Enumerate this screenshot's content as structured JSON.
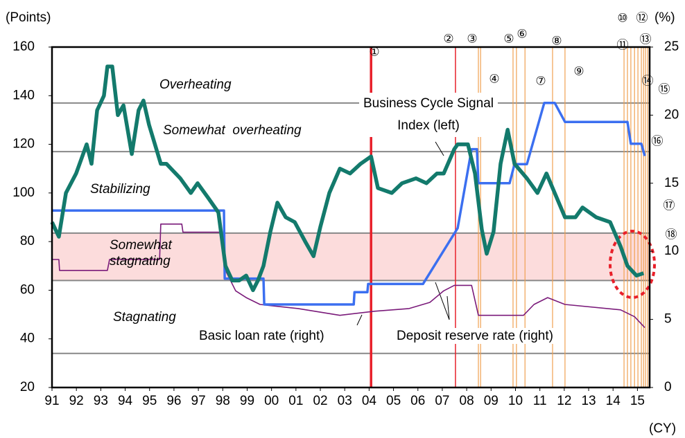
{
  "chart_data": {
    "type": "line",
    "y_label": "(Points)",
    "y2_label": "(%)",
    "x_label": "(CY)",
    "xlim": [
      1991,
      2015.5
    ],
    "xticks": [
      {
        "value": 1991,
        "label": "91"
      },
      {
        "value": 1992,
        "label": "92"
      },
      {
        "value": 1993,
        "label": "93"
      },
      {
        "value": 1994,
        "label": "94"
      },
      {
        "value": 1995,
        "label": "95"
      },
      {
        "value": 1996,
        "label": "96"
      },
      {
        "value": 1997,
        "label": "97"
      },
      {
        "value": 1998,
        "label": "98"
      },
      {
        "value": 1999,
        "label": "99"
      },
      {
        "value": 2000,
        "label": "00"
      },
      {
        "value": 2001,
        "label": "01"
      },
      {
        "value": 2002,
        "label": "02"
      },
      {
        "value": 2003,
        "label": "03"
      },
      {
        "value": 2004,
        "label": "04"
      },
      {
        "value": 2005,
        "label": "05"
      },
      {
        "value": 2006,
        "label": "06"
      },
      {
        "value": 2007,
        "label": "07"
      },
      {
        "value": 2008,
        "label": "08"
      },
      {
        "value": 2009,
        "label": "09"
      },
      {
        "value": 2010,
        "label": "10"
      },
      {
        "value": 2011,
        "label": "11"
      },
      {
        "value": 2012,
        "label": "12"
      },
      {
        "value": 2013,
        "label": "13"
      },
      {
        "value": 2014,
        "label": "14"
      },
      {
        "value": 2015,
        "label": "15"
      }
    ],
    "ylim": [
      20,
      160
    ],
    "yticks": [
      20,
      40,
      60,
      80,
      100,
      120,
      140,
      160
    ],
    "y2lim": [
      0,
      25
    ],
    "y2ticks": [
      0,
      5,
      10,
      15,
      20,
      25
    ],
    "thresholds": [
      137,
      117,
      83.5,
      64,
      34
    ],
    "shaded_band": [
      64,
      83.5
    ],
    "zones": [
      "Overheating",
      "Somewhat  overheating",
      "Stabilizing",
      "Somewhat stagnating",
      "Stagnating"
    ],
    "events": [
      {
        "label": "①",
        "x": 2004.08,
        "color": "#e8202a"
      },
      {
        "label": "②",
        "x": 2007.54,
        "color": "#e8202a"
      },
      {
        "label": "③",
        "x": 2008.48,
        "color": "#f0a050"
      },
      {
        "label": "④",
        "x": 2008.57,
        "color": "#f0a050"
      },
      {
        "label": "⑤",
        "x": 2009.9,
        "color": "#f0a050"
      },
      {
        "label": "⑥",
        "x": 2010.04,
        "color": "#f0a050"
      },
      {
        "label": "⑦",
        "x": 2010.39,
        "color": "#f0a050"
      },
      {
        "label": "⑧",
        "x": 2011.52,
        "color": "#f0a050"
      },
      {
        "label": "⑨",
        "x": 2012.03,
        "color": "#f0a050"
      },
      {
        "label": "⑩",
        "x": 2014.45,
        "color": "#f0a050"
      },
      {
        "label": "⑪",
        "x": 2014.59,
        "color": "#f0a050"
      },
      {
        "label": "⑫",
        "x": 2014.73,
        "color": "#f0a050"
      },
      {
        "label": "⑬",
        "x": 2014.88,
        "color": "#f0a050"
      },
      {
        "label": "⑭",
        "x": 2015.02,
        "color": "#f0a050"
      },
      {
        "label": "⑮",
        "x": 2015.16,
        "color": "#f0a050"
      },
      {
        "label": "⑯",
        "x": 2015.25,
        "color": "#f0a050"
      },
      {
        "label": "⑰",
        "x": 2015.33,
        "color": "#f0a050"
      },
      {
        "label": "⑱",
        "x": 2015.42,
        "color": "#f0a050"
      }
    ],
    "series": [
      {
        "name": "Business Cycle Signal Index (left)",
        "color": "#137a6c",
        "axis": "y",
        "x": [
          1991.0,
          1991.28,
          1991.57,
          1991.99,
          1992.42,
          1992.62,
          1992.85,
          1993.13,
          1993.27,
          1993.47,
          1993.7,
          1993.93,
          1994.27,
          1994.55,
          1994.75,
          1994.98,
          1995.46,
          1995.69,
          1996.26,
          1996.69,
          1996.97,
          1997.4,
          1997.82,
          1998.11,
          1998.39,
          1998.67,
          1998.96,
          1999.24,
          1999.44,
          1999.67,
          1999.95,
          2000.24,
          2000.58,
          2000.95,
          2001.38,
          2001.72,
          2002.0,
          2002.37,
          2002.8,
          2003.22,
          2003.65,
          2004.08,
          2004.36,
          2004.93,
          2005.35,
          2005.92,
          2006.35,
          2006.78,
          2007.06,
          2007.49,
          2007.63,
          2008.05,
          2008.34,
          2008.62,
          2008.82,
          2009.1,
          2009.39,
          2009.68,
          2009.96,
          2010.47,
          2010.9,
          2011.27,
          2011.61,
          2012.03,
          2012.46,
          2012.75,
          2013.31,
          2013.88,
          2014.31,
          2014.59,
          2014.96,
          2015.25
        ],
        "values": [
          88,
          82,
          100,
          108,
          120,
          112,
          134,
          140,
          152,
          152,
          132,
          136,
          116,
          134,
          138,
          128,
          112,
          112,
          106,
          100,
          104,
          98,
          92,
          70,
          64,
          64,
          66,
          60,
          64,
          70,
          84,
          96,
          90,
          88,
          80,
          74,
          86,
          100,
          110,
          108,
          112,
          115,
          102,
          100,
          104,
          106,
          104,
          108,
          108,
          118,
          120,
          120,
          108,
          85,
          75,
          84,
          112,
          126,
          112,
          106,
          100,
          108,
          100,
          90,
          90,
          94,
          90,
          88,
          78,
          70,
          66,
          67
        ]
      },
      {
        "name": "Basic loan rate (right)",
        "color": "#3b6ff0",
        "axis": "y2",
        "x": [
          1991,
          1998.05,
          1998.08,
          1999.67,
          1999.7,
          2003.37,
          2003.4,
          2003.93,
          2003.96,
          2006.21,
          2007.63,
          2008.2,
          2008.42,
          2008.48,
          2009.76,
          2009.96,
          2010.47,
          2011.18,
          2011.61,
          2012.03,
          2014.59,
          2014.73,
          2015.16,
          2015.3
        ],
        "values": [
          13,
          13,
          8,
          8,
          6.1,
          6.1,
          7,
          7,
          7.6,
          7.6,
          11.7,
          17.5,
          17.5,
          15,
          15,
          16.4,
          16.4,
          20.9,
          20.9,
          19.5,
          19.5,
          17.9,
          17.9,
          17
        ]
      },
      {
        "name": "Deposit reserve rate (right)",
        "color": "#7a1a7a",
        "axis": "y2",
        "x": [
          1991.0,
          1991.28,
          1991.31,
          1993.27,
          1993.36,
          1995.41,
          1995.46,
          1996.32,
          1996.37,
          1997.96,
          1998.11,
          1998.53,
          1998.96,
          1999.53,
          2001.09,
          2002.8,
          2004.22,
          2005.64,
          2006.49,
          2007.06,
          2007.49,
          2008.2,
          2008.48,
          2010.33,
          2010.76,
          2011.32,
          2012.03,
          2014.31,
          2014.88,
          2015.3
        ],
        "values": [
          9.4,
          9.4,
          8.6,
          8.6,
          9.4,
          9.4,
          12.0,
          12.0,
          11.4,
          11.4,
          8.6,
          7.1,
          6.6,
          6.1,
          5.8,
          5.3,
          5.6,
          5.8,
          6.25,
          7.1,
          7.5,
          7.5,
          5.3,
          5.3,
          6.1,
          6.6,
          6.1,
          5.7,
          5.2,
          4.4
        ]
      }
    ]
  }
}
